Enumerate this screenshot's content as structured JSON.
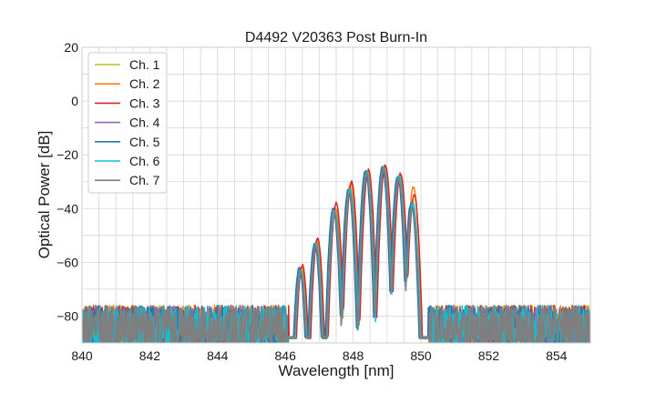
{
  "chart_data": {
    "type": "line",
    "title": "D4492 V20363 Post Burn-In",
    "xlabel": "Wavelength [nm]",
    "ylabel": "Optical Power [dB]",
    "xlim": [
      840,
      855
    ],
    "ylim": [
      -90,
      20
    ],
    "x_ticks": [
      "840",
      "842",
      "844",
      "846",
      "848",
      "850",
      "852",
      "854"
    ],
    "y_ticks": [
      "20",
      "0",
      "−20",
      "−40",
      "−60",
      "−80"
    ],
    "x_tick_values": [
      840,
      842,
      844,
      846,
      848,
      850,
      852,
      854
    ],
    "y_tick_values": [
      20,
      0,
      -20,
      -40,
      -60,
      -80
    ],
    "x_minor_step": 0.5,
    "y_minor_step": 10,
    "grid": true,
    "legend_position": "top-left",
    "noise_floor_db": -80,
    "series": [
      {
        "name": "Ch. 1",
        "color": "#bcbd22",
        "shift": 0.0,
        "peaks": [
          -63,
          -53,
          -41,
          -32,
          -26,
          -24.5,
          -28,
          -37
        ]
      },
      {
        "name": "Ch. 2",
        "color": "#ff7f0e",
        "shift": 0.03,
        "peaks": [
          -62,
          -52,
          -40,
          -31,
          -26,
          -24,
          -27,
          -32
        ]
      },
      {
        "name": "Ch. 3",
        "color": "#d62728",
        "shift": 0.05,
        "peaks": [
          -61,
          -51,
          -38,
          -30,
          -25.5,
          -24,
          -27,
          -35
        ]
      },
      {
        "name": "Ch. 4",
        "color": "#9467bd",
        "shift": -0.02,
        "peaks": [
          -63,
          -54,
          -42,
          -34,
          -27,
          -25,
          -29,
          -39
        ]
      },
      {
        "name": "Ch. 5",
        "color": "#1f77b4",
        "shift": -0.04,
        "peaks": [
          -62,
          -53,
          -40,
          -33,
          -26,
          -24.5,
          -28,
          -38
        ]
      },
      {
        "name": "Ch. 6",
        "color": "#17becf",
        "shift": 0.01,
        "peaks": [
          -63,
          -53,
          -41,
          -33,
          -26.5,
          -25,
          -28,
          -38
        ]
      },
      {
        "name": "Ch. 7",
        "color": "#7f7f7f",
        "shift": -0.01,
        "peaks": [
          -63,
          -54,
          -41,
          -34,
          -27,
          -25,
          -29,
          -40
        ]
      }
    ]
  }
}
